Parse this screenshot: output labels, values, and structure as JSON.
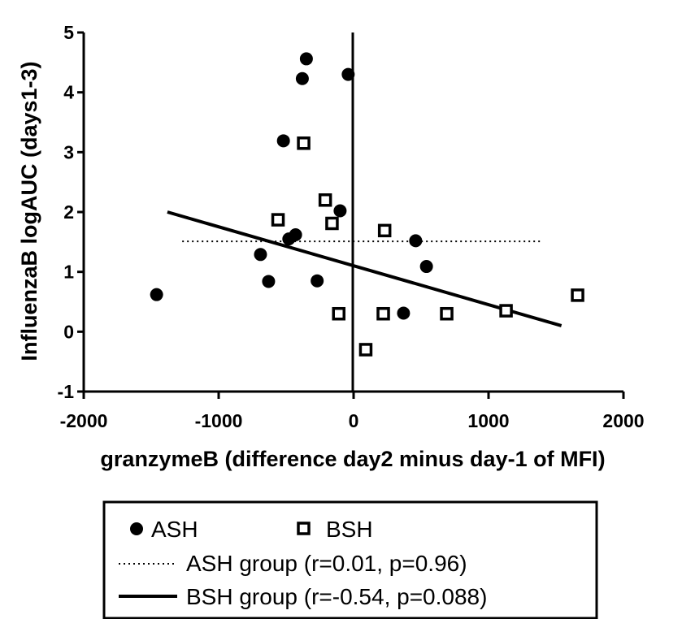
{
  "chart_data": {
    "type": "scatter",
    "xlabel": "granzymeB (difference day2 minus day-1 of MFI)",
    "ylabel": "InfluenzaB logAUC (days1-3)",
    "xlim": [
      -2000,
      2000
    ],
    "ylim": [
      -1,
      5
    ],
    "x_ticks": [
      "-2000",
      "-1000",
      "0",
      "1000",
      "2000"
    ],
    "y_ticks": [
      "-1",
      "0",
      "1",
      "2",
      "3",
      "4",
      "5"
    ],
    "legend_position": "bottom",
    "series": [
      {
        "name": "ASH",
        "marker": "filled-circle",
        "color": "#000000",
        "points": [
          [
            -1460,
            0.62
          ],
          [
            -690,
            1.29
          ],
          [
            -630,
            0.84
          ],
          [
            -520,
            3.19
          ],
          [
            -480,
            1.55
          ],
          [
            -430,
            1.62
          ],
          [
            -380,
            4.23
          ],
          [
            -350,
            4.56
          ],
          [
            -270,
            0.85
          ],
          [
            -100,
            2.02
          ],
          [
            -40,
            4.3
          ],
          [
            370,
            0.31
          ],
          [
            460,
            1.52
          ],
          [
            540,
            1.09
          ]
        ]
      },
      {
        "name": "BSH",
        "marker": "open-square",
        "color": "#000000",
        "points": [
          [
            -560,
            1.87
          ],
          [
            -370,
            3.15
          ],
          [
            -210,
            2.2
          ],
          [
            -160,
            1.81
          ],
          [
            -110,
            0.3
          ],
          [
            90,
            -0.3
          ],
          [
            220,
            0.3
          ],
          [
            230,
            1.69
          ],
          [
            690,
            0.3
          ],
          [
            1130,
            0.35
          ],
          [
            1660,
            0.61
          ]
        ]
      }
    ],
    "fit_lines": [
      {
        "name": "ASH group (r=0.01, p=0.96)",
        "style": "dotted",
        "x": [
          -1270,
          1400
        ],
        "y": [
          1.51,
          1.51
        ]
      },
      {
        "name": "BSH group (r=-0.54, p=0.088)",
        "style": "solid",
        "x": [
          -1380,
          1540
        ],
        "y": [
          2.0,
          0.1
        ]
      }
    ],
    "legend": {
      "ash_marker_label": "ASH",
      "bsh_marker_label": "BSH",
      "ash_line_label": "ASH group (r=0.01, p=0.96)",
      "bsh_line_label": "BSH group (r=-0.54, p=0.088)"
    }
  }
}
